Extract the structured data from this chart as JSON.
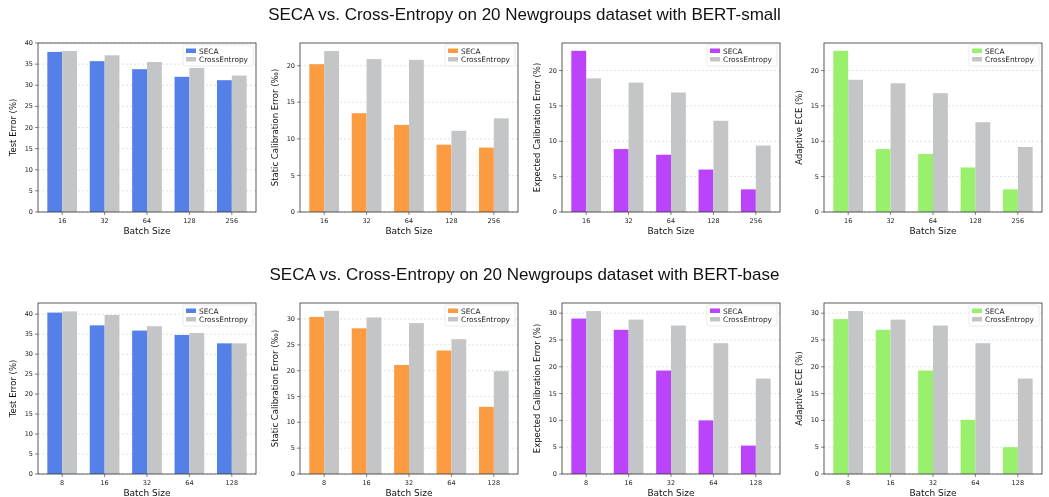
{
  "chart_data": [
    {
      "type": "bar",
      "xlabel": "Batch Size",
      "ylabel": "Test Error (%)",
      "categories": [
        "16",
        "32",
        "64",
        "128",
        "256"
      ],
      "series": [
        {
          "name": "SECA",
          "color": "#5580e8",
          "values": [
            37.9,
            35.7,
            33.8,
            32.0,
            31.2
          ]
        },
        {
          "name": "CrossEntropy",
          "color": "#c3c5c6",
          "values": [
            38.1,
            37.1,
            35.5,
            34.1,
            32.3
          ]
        }
      ],
      "ylim": [
        0,
        40
      ],
      "yticks": [
        0,
        5,
        10,
        15,
        20,
        25,
        30,
        35,
        40
      ],
      "grid": "y",
      "legend": "top right"
    },
    {
      "type": "bar",
      "title": "SECA vs. Cross-Entropy on 20 Newgroups dataset with BERT-small",
      "xlabel": "Batch Size",
      "ylabel": "Static Calibration Error (‰)",
      "categories": [
        "16",
        "32",
        "64",
        "128",
        "256"
      ],
      "series": [
        {
          "name": "SECA",
          "color": "#fd9b40",
          "values": [
            20.2,
            13.5,
            11.9,
            9.2,
            8.8
          ]
        },
        {
          "name": "CrossEntropy",
          "color": "#c3c5c6",
          "values": [
            22.0,
            20.9,
            20.8,
            11.1,
            12.8
          ]
        }
      ],
      "ylim": [
        0,
        23.1
      ],
      "yticks": [
        0,
        5,
        10,
        15,
        20
      ],
      "grid": "y",
      "legend": "top right"
    },
    {
      "type": "bar",
      "xlabel": "Batch Size",
      "ylabel": "Expected Calibration Error (%)",
      "categories": [
        "16",
        "32",
        "64",
        "128",
        "256"
      ],
      "series": [
        {
          "name": "SECA",
          "color": "#bb44fb",
          "values": [
            22.8,
            8.9,
            8.1,
            6.0,
            3.2
          ]
        },
        {
          "name": "CrossEntropy",
          "color": "#c3c5c6",
          "values": [
            18.9,
            18.3,
            16.9,
            12.9,
            9.4
          ]
        }
      ],
      "ylim": [
        0,
        23.9
      ],
      "yticks": [
        0,
        5,
        10,
        15,
        20
      ],
      "grid": "y",
      "legend": "top right"
    },
    {
      "type": "bar",
      "xlabel": "Batch Size",
      "ylabel": "Adaptive ECE (%)",
      "categories": [
        "16",
        "32",
        "64",
        "128",
        "256"
      ],
      "series": [
        {
          "name": "SECA",
          "color": "#99f06d",
          "values": [
            22.8,
            8.9,
            8.2,
            6.3,
            3.2
          ]
        },
        {
          "name": "CrossEntropy",
          "color": "#c3c5c6",
          "values": [
            18.7,
            18.2,
            16.8,
            12.7,
            9.2
          ]
        }
      ],
      "ylim": [
        0,
        23.9
      ],
      "yticks": [
        0,
        5,
        10,
        15,
        20
      ],
      "grid": "y",
      "legend": "top right"
    },
    {
      "type": "bar",
      "xlabel": "Batch Size",
      "ylabel": "Test Error (%)",
      "categories": [
        "8",
        "16",
        "32",
        "64",
        "128"
      ],
      "series": [
        {
          "name": "SECA",
          "color": "#5580e8",
          "values": [
            40.4,
            37.2,
            35.9,
            34.8,
            32.7
          ]
        },
        {
          "name": "CrossEntropy",
          "color": "#c3c5c6",
          "values": [
            40.7,
            39.8,
            37.0,
            35.3,
            32.7
          ]
        }
      ],
      "ylim": [
        0,
        42.8
      ],
      "yticks": [
        0,
        5,
        10,
        15,
        20,
        25,
        30,
        35,
        40
      ],
      "grid": "y",
      "legend": "top right"
    },
    {
      "type": "bar",
      "title": "SECA vs. Cross-Entropy on 20 Newgroups dataset with BERT-base",
      "xlabel": "Batch Size",
      "ylabel": "Static Calibration Error (‰)",
      "categories": [
        "8",
        "16",
        "32",
        "64",
        "128"
      ],
      "series": [
        {
          "name": "SECA",
          "color": "#fd9b40",
          "values": [
            30.4,
            28.2,
            21.1,
            23.9,
            13.0
          ]
        },
        {
          "name": "CrossEntropy",
          "color": "#c3c5c6",
          "values": [
            31.6,
            30.3,
            29.2,
            26.1,
            19.9
          ]
        }
      ],
      "ylim": [
        0,
        33.1
      ],
      "yticks": [
        0,
        5,
        10,
        15,
        20,
        25,
        30
      ],
      "grid": "y",
      "legend": "top right"
    },
    {
      "type": "bar",
      "xlabel": "Batch Size",
      "ylabel": "Expected Calibration Error (%)",
      "categories": [
        "8",
        "16",
        "32",
        "64",
        "128"
      ],
      "series": [
        {
          "name": "SECA",
          "color": "#bb44fb",
          "values": [
            29.0,
            26.9,
            19.3,
            10.0,
            5.3
          ]
        },
        {
          "name": "CrossEntropy",
          "color": "#c3c5c6",
          "values": [
            30.4,
            28.8,
            27.7,
            24.4,
            17.8
          ]
        }
      ],
      "ylim": [
        0,
        31.9
      ],
      "yticks": [
        0,
        5,
        10,
        15,
        20,
        25,
        30
      ],
      "grid": "y",
      "legend": "top right"
    },
    {
      "type": "bar",
      "xlabel": "Batch Size",
      "ylabel": "Adaptive ECE (%)",
      "categories": [
        "8",
        "16",
        "32",
        "64",
        "128"
      ],
      "series": [
        {
          "name": "SECA",
          "color": "#99f06d",
          "values": [
            28.9,
            26.9,
            19.3,
            10.1,
            5.0
          ]
        },
        {
          "name": "CrossEntropy",
          "color": "#c3c5c6",
          "values": [
            30.4,
            28.8,
            27.7,
            24.4,
            17.8
          ]
        }
      ],
      "ylim": [
        0,
        31.9
      ],
      "yticks": [
        0,
        5,
        10,
        15,
        20,
        25,
        30
      ],
      "grid": "y",
      "legend": "top right"
    }
  ]
}
